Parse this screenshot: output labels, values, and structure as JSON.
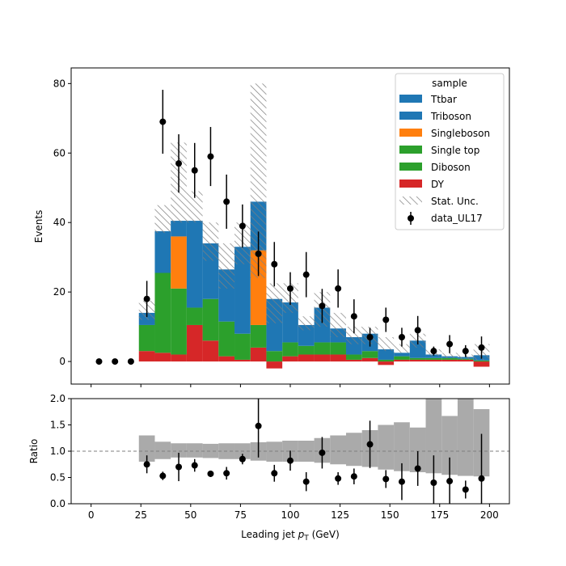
{
  "chart_data": {
    "type": "bar",
    "stacked": true,
    "bin_width": 8,
    "bin_left_edges": [
      24,
      32,
      40,
      48,
      56,
      64,
      72,
      80,
      88,
      96,
      104,
      112,
      120,
      128,
      136,
      144,
      152,
      160,
      168,
      176,
      184,
      192
    ],
    "xlim": [
      -10,
      210
    ],
    "xticks": [
      0,
      25,
      50,
      75,
      100,
      125,
      150,
      175,
      200
    ],
    "xlabel_main": "Leading jet",
    "xlabel_symbol": "p",
    "xlabel_subscript": "T",
    "xlabel_unit": "(GeV)",
    "main": {
      "ylabel": "Events",
      "ylim": [
        -6.5,
        84.5
      ],
      "yticks": [
        0,
        20,
        40,
        60,
        80
      ],
      "series": [
        {
          "name": "DY",
          "color": "#d62728",
          "values": [
            3,
            2.5,
            2,
            10.5,
            6,
            1.5,
            0.5,
            4,
            -2,
            1.5,
            2,
            2,
            2,
            0.5,
            1,
            -1,
            0.5,
            0.5,
            0.5,
            0.5,
            0.5,
            -1.5
          ]
        },
        {
          "name": "Diboson",
          "color": "#2ca02c",
          "values": [
            7.5,
            23,
            19,
            5,
            12,
            10,
            7.5,
            6.5,
            3,
            4,
            2.5,
            3.5,
            3.5,
            1.5,
            2,
            0.5,
            1,
            0.5,
            0.5,
            0.5,
            0.3,
            0.3
          ]
        },
        {
          "name": "Single top",
          "color": "#2ca02c",
          "values": [
            0,
            0,
            0,
            0,
            0,
            0,
            0,
            0,
            0,
            0,
            0,
            0,
            0,
            0,
            0,
            0,
            0,
            0,
            0,
            0,
            0,
            0
          ]
        },
        {
          "name": "Singleboson",
          "color": "#ff7f0e",
          "values": [
            0,
            0,
            15,
            0,
            0,
            0,
            0,
            21.5,
            0,
            0,
            0,
            0,
            0,
            0,
            0,
            0,
            0,
            0,
            0,
            0,
            0,
            0
          ]
        },
        {
          "name": "Triboson",
          "color": "#1f77b4",
          "values": [
            0,
            0,
            0,
            0,
            0,
            0,
            0,
            0,
            0,
            0,
            0,
            0,
            0,
            0,
            0,
            0,
            0,
            0,
            0,
            0,
            0,
            0
          ]
        },
        {
          "name": "Ttbar",
          "color": "#1f77b4",
          "values": [
            3.5,
            12,
            4.5,
            25,
            16,
            15,
            25,
            14,
            15,
            11.5,
            6,
            10,
            4,
            5,
            5,
            3,
            1,
            5,
            1,
            0.5,
            0.5,
            1.5
          ]
        }
      ],
      "stat_unc": {
        "name": "Stat. Unc.",
        "down": [
          12,
          37,
          40,
          40,
          29,
          21,
          28,
          24,
          11,
          14,
          9,
          10,
          7,
          5,
          5,
          3,
          2.5,
          4,
          1.5,
          1,
          0.5,
          0.3
        ],
        "up": [
          17.5,
          45,
          63,
          49,
          40,
          34,
          40,
          80,
          22.5,
          22.5,
          13,
          20,
          14,
          10,
          10,
          7,
          5,
          8,
          3.5,
          2.5,
          2,
          5
        ]
      },
      "data": {
        "name": "data_UL17",
        "x": [
          4,
          12,
          20,
          28,
          36,
          44,
          52,
          60,
          68,
          76,
          84,
          92,
          100,
          108,
          116,
          124,
          132,
          140,
          148,
          156,
          164,
          172,
          180,
          188,
          196
        ],
        "y": [
          0,
          0,
          0,
          18,
          69,
          57,
          55,
          59,
          46,
          39,
          31,
          28,
          21,
          25,
          16,
          21,
          13,
          7,
          12,
          7,
          9,
          3,
          5,
          3,
          4
        ],
        "err": [
          0,
          0,
          0,
          5.2,
          9.2,
          8.4,
          7.9,
          8.5,
          7.8,
          6.2,
          6.4,
          6.4,
          4.7,
          6.5,
          4.9,
          5.5,
          4.9,
          2.7,
          3.5,
          2.7,
          4.1,
          1.3,
          2.6,
          1.7,
          3.2
        ]
      },
      "legend": {
        "title": "sample",
        "position": "top-right",
        "entries": [
          "Ttbar",
          "Triboson",
          "Singleboson",
          "Single top",
          "Diboson",
          "DY",
          "Stat. Unc.",
          "data_UL17"
        ]
      }
    },
    "ratio": {
      "ylabel": "Ratio",
      "ylim": [
        0.0,
        2.0
      ],
      "yticks": [
        "0.0",
        "0.5",
        "1.0",
        "1.5",
        "2.0"
      ],
      "reference_line": 1.0,
      "band": {
        "down": [
          0.8,
          0.85,
          0.88,
          0.88,
          0.87,
          0.85,
          0.85,
          0.82,
          0.8,
          0.8,
          0.8,
          0.78,
          0.75,
          0.72,
          0.7,
          0.65,
          0.62,
          0.6,
          0.58,
          0.55,
          0.53,
          0.52
        ],
        "up": [
          1.3,
          1.18,
          1.15,
          1.15,
          1.14,
          1.15,
          1.15,
          1.17,
          1.18,
          1.2,
          1.2,
          1.25,
          1.3,
          1.35,
          1.4,
          1.5,
          1.55,
          1.45,
          2.0,
          1.67,
          2.0,
          1.8
        ]
      },
      "points": {
        "x": [
          28,
          36,
          44,
          52,
          60,
          68,
          76,
          84,
          92,
          100,
          108,
          116,
          124,
          132,
          140,
          148,
          156,
          164,
          172,
          180,
          188,
          196
        ],
        "y": [
          0.75,
          0.53,
          0.7,
          0.73,
          0.57,
          0.58,
          0.85,
          1.48,
          0.58,
          0.82,
          0.42,
          0.97,
          0.48,
          0.52,
          1.13,
          0.47,
          0.42,
          0.67,
          0.4,
          0.43,
          0.27,
          0.48
        ],
        "err": [
          0.17,
          0.08,
          0.27,
          0.12,
          0.06,
          0.12,
          0.1,
          0.6,
          0.16,
          0.19,
          0.18,
          0.3,
          0.12,
          0.15,
          0.45,
          0.17,
          0.35,
          0.33,
          0.52,
          0.45,
          0.17,
          0.85
        ]
      }
    }
  }
}
